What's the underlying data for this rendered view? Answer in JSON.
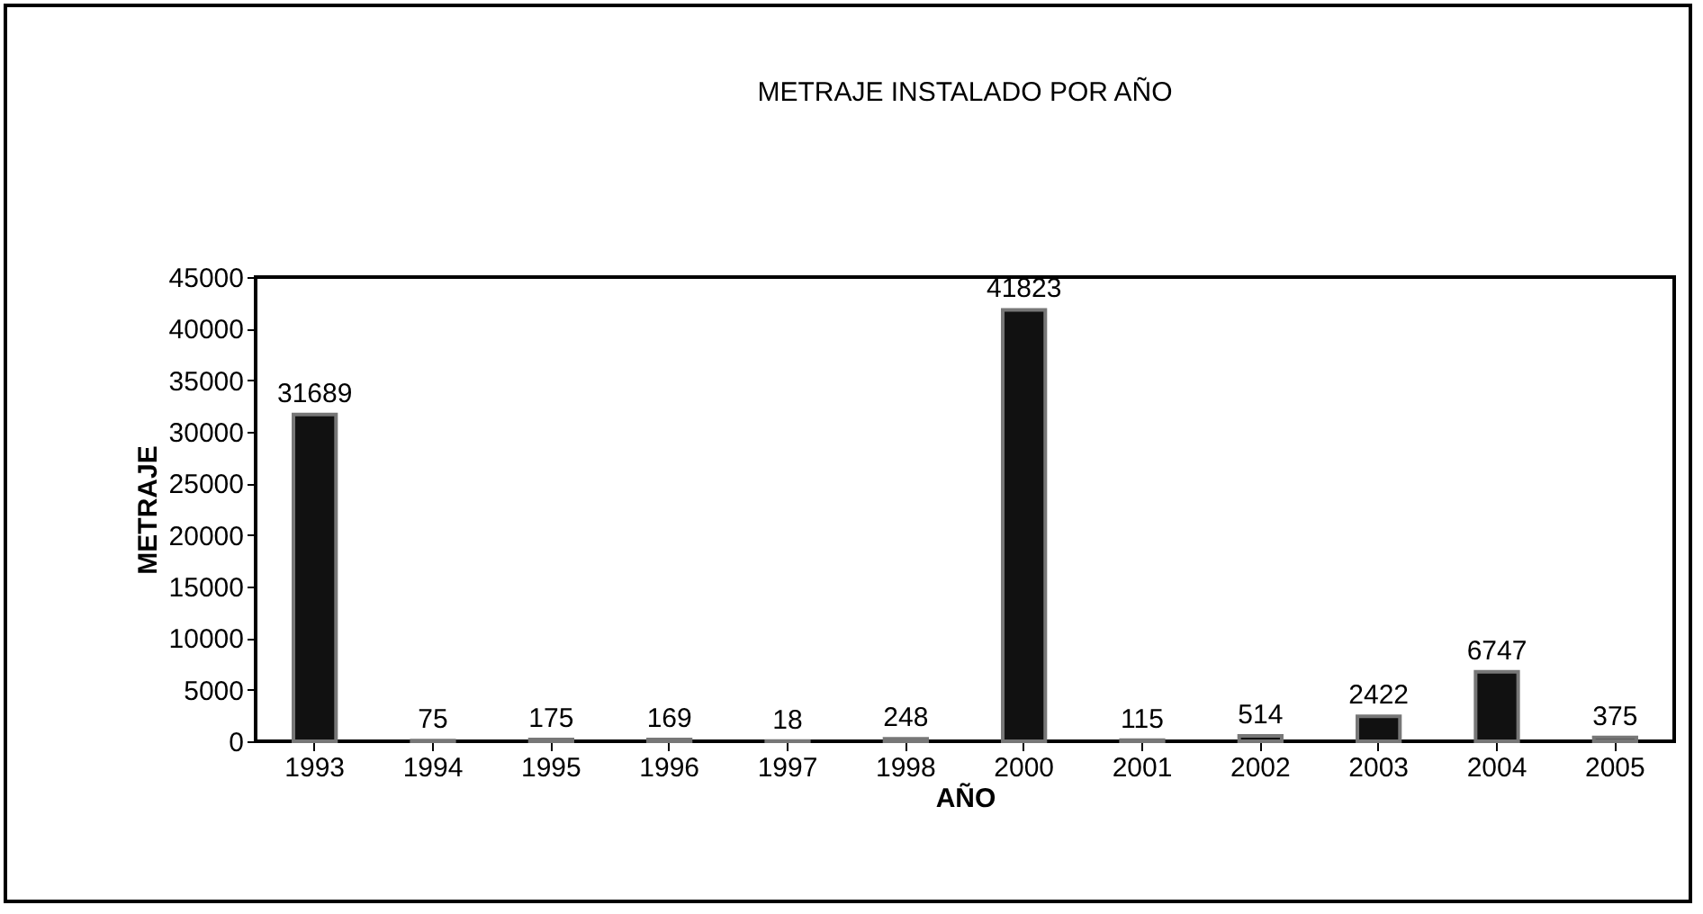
{
  "chart_data": {
    "type": "bar",
    "title": "METRAJE INSTALADO POR AÑO",
    "xlabel": "AÑO",
    "ylabel": "METRAJE",
    "categories": [
      "1993",
      "1994",
      "1995",
      "1996",
      "1997",
      "1998",
      "2000",
      "2001",
      "2002",
      "2003",
      "2004",
      "2005"
    ],
    "values": [
      31689,
      75,
      175,
      169,
      18,
      248,
      41823,
      115,
      514,
      2422,
      6747,
      375
    ],
    "color": "#111111",
    "ylim": [
      0,
      45000
    ],
    "yticks": [
      0,
      5000,
      10000,
      15000,
      20000,
      25000,
      30000,
      35000,
      40000,
      45000
    ],
    "grid": false,
    "data_labels": true
  }
}
